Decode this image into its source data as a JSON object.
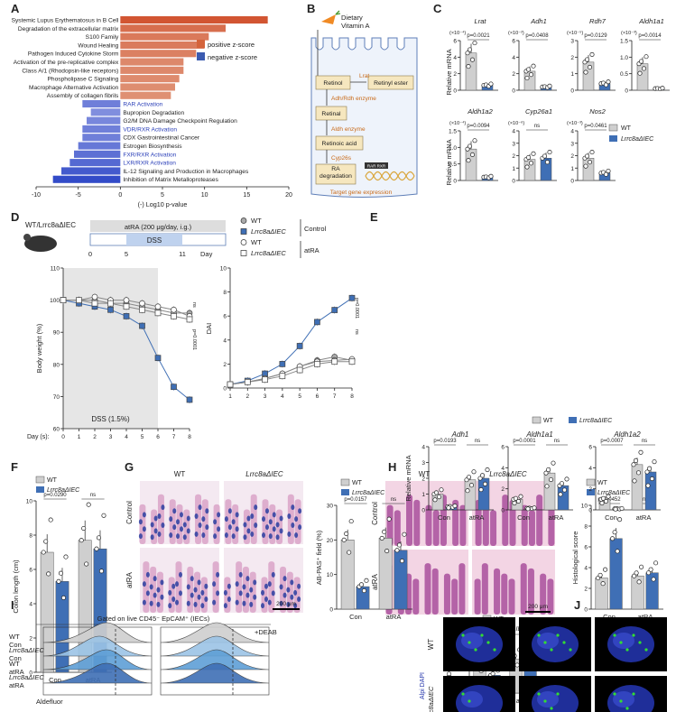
{
  "panel_letters": [
    "A",
    "B",
    "C",
    "D",
    "E",
    "F",
    "G",
    "H",
    "I",
    "J"
  ],
  "chart_data": [
    {
      "panel": "A",
      "type": "bar",
      "orientation": "horizontal",
      "categories": [
        "Systemic Lupus Erythematosus in B Cell",
        "Degradation of the extracellular matrix",
        "S100 Family",
        "Wound Healing",
        "Pathogen Induced Cytokine Storm",
        "Activation of the pre-replicative complex",
        "Class A/1 (Rhodopsin-like receptors)",
        "Phospholipase C Signaling",
        "Macrophage Alternative Activation",
        "Assembly of collagen fibrils",
        "RAR Activation",
        "Bupropion Degradation",
        "G2/M DNA Damage Checkpoint Regulation",
        "VDR/RXR Activation",
        "CDX Gastrointestinal Cancer",
        "Estrogen Biosynthesis",
        "FXR/RXR Activation",
        "LXR/RXR Activation",
        "IL-12 Signaling and Production in Macrophages",
        "Inhibition of Matrix Metalloproteases"
      ],
      "values": [
        17.5,
        12.5,
        10.5,
        10.0,
        9.0,
        7.5,
        7.5,
        7.0,
        6.5,
        6.0,
        -4.5,
        -3.5,
        -4.0,
        -4.5,
        -4.5,
        -5.0,
        -5.5,
        -6.0,
        -7.0,
        -8.0
      ],
      "highlight_blue_labels": [
        "RAR Activation",
        "VDR/RXR Activation",
        "FXR/RXR Activation",
        "LXR/RXR Activation"
      ],
      "xlabel": "(-) Log10 p-value",
      "xticks": [
        "-10",
        "-5",
        "0",
        "5",
        "10",
        "15",
        "20"
      ],
      "xlim": [
        -10,
        20
      ],
      "legend": [
        "positive z-score",
        "negative z-score"
      ],
      "legend_colors": [
        "#d4633b",
        "#3b5bb0"
      ]
    },
    {
      "panel": "C",
      "type": "bar",
      "ylabel": "Relative mRNA",
      "groups": [
        "WT",
        "Lrrc8aΔIEC"
      ],
      "subplots": [
        {
          "gene": "Lrat",
          "scale": "(×10⁻⁴)",
          "ymax": 6,
          "yticks": [
            "0",
            "2",
            "4",
            "6"
          ],
          "values": [
            4.5,
            0.6
          ],
          "p": "p=0.0021"
        },
        {
          "gene": "Adh1",
          "scale": "(×10⁻²)",
          "ymax": 6,
          "yticks": [
            "0",
            "2",
            "4",
            "6"
          ],
          "values": [
            2.3,
            0.4
          ],
          "p": "p=0.0408"
        },
        {
          "gene": "Rdh7",
          "scale": "(×10⁻⁵)",
          "ymax": 3,
          "yticks": [
            "0",
            "1",
            "2",
            "3"
          ],
          "values": [
            1.7,
            0.4
          ],
          "p": "p=0.0129"
        },
        {
          "gene": "Aldh1a1",
          "scale": "(×10⁻³)",
          "ymax": 1.5,
          "yticks": [
            "0",
            "0.5",
            "1.0",
            "1.5"
          ],
          "values": [
            0.8,
            0.05
          ],
          "p": "p=0.0014"
        },
        {
          "gene": "Aldh1a2",
          "scale": "(×10⁻⁴)",
          "ymax": 1.5,
          "yticks": [
            "0",
            "0.5",
            "1.0",
            "1.5"
          ],
          "values": [
            0.95,
            0.1
          ],
          "p": "p=0.0094"
        },
        {
          "gene": "Cyp26a1",
          "scale": "(×10⁻⁶)",
          "ymax": 4,
          "yticks": [
            "0",
            "1",
            "2",
            "3",
            "4"
          ],
          "values": [
            1.7,
            1.8
          ],
          "p": "ns"
        },
        {
          "gene": "Nos2",
          "scale": "(×10⁻³)",
          "ymax": 4,
          "yticks": [
            "0",
            "1",
            "2",
            "3",
            "4"
          ],
          "values": [
            1.8,
            0.6
          ],
          "p": "p=0.0461"
        }
      ]
    },
    {
      "panel": "D-left",
      "type": "line",
      "ylabel": "Body weight (%)",
      "xlabel": "Day (s):",
      "x": [
        0,
        1,
        2,
        3,
        4,
        5,
        6,
        7,
        8
      ],
      "ylim": [
        60,
        110
      ],
      "yticks": [
        "60",
        "70",
        "80",
        "90",
        "100",
        "110"
      ],
      "shade_label": "DSS (1.5%)",
      "series": [
        {
          "name": "WT Control",
          "values": [
            100,
            100,
            100,
            99,
            99,
            98,
            97,
            96,
            96
          ]
        },
        {
          "name": "Lrrc8aΔIEC Control",
          "values": [
            100,
            99,
            98,
            97,
            95,
            92,
            82,
            73,
            69
          ]
        },
        {
          "name": "WT atRA",
          "values": [
            100,
            100,
            101,
            100,
            100,
            99,
            98,
            97,
            95
          ]
        },
        {
          "name": "Lrrc8aΔIEC atRA",
          "values": [
            100,
            100,
            99,
            99,
            98,
            97,
            96,
            95,
            94
          ]
        }
      ],
      "stats": [
        "ns",
        "p=0.0001",
        "ns"
      ]
    },
    {
      "panel": "D-right",
      "type": "line",
      "ylabel": "DAI",
      "x": [
        1,
        2,
        3,
        4,
        5,
        6,
        7,
        8
      ],
      "ylim": [
        0,
        10
      ],
      "yticks": [
        "0",
        "2",
        "4",
        "6",
        "8",
        "10"
      ],
      "series": [
        {
          "name": "WT Control",
          "values": [
            0.3,
            0.5,
            0.8,
            1.2,
            1.8,
            2.3,
            2.6,
            2.3
          ]
        },
        {
          "name": "Lrrc8aΔIEC Control",
          "values": [
            0.3,
            0.6,
            1.2,
            2.0,
            3.5,
            5.5,
            6.5,
            7.5
          ]
        },
        {
          "name": "WT atRA",
          "values": [
            0.3,
            0.5,
            0.8,
            1.2,
            1.8,
            2.2,
            2.3,
            2.4
          ]
        },
        {
          "name": "Lrrc8aΔIEC atRA",
          "values": [
            0.3,
            0.5,
            0.7,
            1.0,
            1.5,
            2.0,
            2.2,
            2.2
          ]
        }
      ],
      "stats": [
        "p=0.0001",
        "ns"
      ]
    },
    {
      "panel": "E",
      "type": "bar",
      "ylabel": "Colon length (cm)",
      "categories": [
        "Con",
        "atRA"
      ],
      "series": [
        {
          "name": "WT",
          "values": [
            7.0,
            7.7
          ]
        },
        {
          "name": "Lrrc8aΔIEC",
          "values": [
            5.3,
            7.2
          ]
        }
      ],
      "ylim": [
        0,
        10
      ],
      "yticks": [
        "0",
        "2",
        "4",
        "6",
        "8",
        "10"
      ],
      "stats": [
        "p=0.0290",
        "ns"
      ]
    },
    {
      "panel": "F",
      "type": "bar",
      "ylabel": "Histological score",
      "categories": [
        "Con",
        "atRA"
      ],
      "series": [
        {
          "name": "WT",
          "values": [
            3.0,
            3.2
          ]
        },
        {
          "name": "Lrrc8aΔIEC",
          "values": [
            6.8,
            3.5
          ]
        }
      ],
      "ylim": [
        0,
        10
      ],
      "yticks": [
        "0",
        "2",
        "4",
        "6",
        "8",
        "10"
      ],
      "stats": [
        "p=0.0452",
        "ns"
      ]
    },
    {
      "panel": "G",
      "type": "bar",
      "ylabel": "AB-PAS⁺ field (%)",
      "categories": [
        "Con",
        "atRA"
      ],
      "series": [
        {
          "name": "WT",
          "values": [
            20,
            20.5
          ]
        },
        {
          "name": "Lrrc8aΔIEC",
          "values": [
            6.5,
            17
          ]
        }
      ],
      "ylim": [
        0,
        30
      ],
      "yticks": [
        "0",
        "10",
        "20",
        "30"
      ],
      "stats": [
        "p=0.0157",
        "ns"
      ]
    },
    {
      "panel": "H",
      "type": "bar",
      "ylabel": "Relative mRNA",
      "subplots": [
        {
          "gene": "Adh1",
          "ymax": 4,
          "yticks": [
            "0",
            "1",
            "2",
            "3",
            "4"
          ],
          "wt": [
            1.0,
            1.9
          ],
          "ko": [
            0.2,
            2.0
          ],
          "stats": [
            "p=0.0193",
            "ns"
          ]
        },
        {
          "gene": "Aldh1a1",
          "ymax": 6,
          "yticks": [
            "0",
            "2",
            "4",
            "6"
          ],
          "wt": [
            1.0,
            3.5
          ],
          "ko": [
            0.15,
            2.3
          ],
          "stats": [
            "p=0.0001",
            "ns"
          ]
        },
        {
          "gene": "Aldh1a2",
          "ymax": 6,
          "yticks": [
            "0",
            "2",
            "4",
            "6"
          ],
          "wt": [
            1.0,
            4.3
          ],
          "ko": [
            0.1,
            3.6
          ],
          "stats": [
            "p=0.0007",
            "ns"
          ]
        }
      ],
      "categories": [
        "Con",
        "atRA"
      ]
    },
    {
      "panel": "I",
      "type": "bar",
      "ylabel": "ALDH activity",
      "categories": [
        "Con",
        "atRA"
      ],
      "series": [
        {
          "name": "WT",
          "values": [
            19,
            24
          ]
        },
        {
          "name": "Lrrc8aΔIEC",
          "values": [
            12.5,
            25
          ]
        }
      ],
      "ylim": [
        0,
        40
      ],
      "yticks": [
        "0",
        "10",
        "20",
        "30",
        "40"
      ],
      "stats": [
        "p=0.0103",
        "ns"
      ]
    }
  ],
  "panelB": {
    "diet_label": "Dietary\nVitamin A",
    "boxes": [
      "Retinol",
      "Retinyl ester",
      "Retinal",
      "Retinoic acid",
      "RA\ndegradation"
    ],
    "enzymes": [
      "Lrat",
      "Adh/Rdh enzyme",
      "Aldh enzyme",
      "Cyp26s"
    ],
    "rare_label": "RAR RXR",
    "target": "Target gene expression"
  },
  "panelD": {
    "mouse_label": "WT/Lrrc8aΔIEC",
    "atra_text": "atRA (200 μg/day, i.g.)",
    "dss_text": "DSS",
    "timeline": [
      "0",
      "5",
      "11"
    ],
    "day_word": "Day",
    "legend": [
      "WT",
      "Lrrc8aΔIEC",
      "WT",
      "Lrrc8aΔIEC"
    ],
    "group_labels": [
      "Control",
      "atRA"
    ]
  },
  "panelF": {
    "col_headers": [
      "WT",
      "Lrrc8aΔIEC"
    ],
    "row_labels": [
      "Control",
      "atRA"
    ],
    "scale": "200 μm"
  },
  "panelG": {
    "col_headers": [
      "WT",
      "Lrrc8aΔIEC"
    ],
    "row_labels": [
      "Control",
      "atRA"
    ],
    "scale": "200 μm"
  },
  "panelI": {
    "header": "Gated on live CD45⁻ EpCAM⁺ (IECs)",
    "deab": "+DEAB",
    "row_labels": [
      "WT\nCon",
      "Lrrc8aΔIEC\nCon",
      "WT\natRA",
      "Lrrc8aΔIEC\natRA"
    ],
    "xlabel": "Aldefluor"
  },
  "panelJ": {
    "row_labels": [
      "WT",
      "Lrrc8aΔIEC"
    ],
    "stain": "Alpi DAPI",
    "scale": "100 μm",
    "atra_label": "atRA:",
    "conditions": [
      "-",
      "1 μM",
      "5 μM"
    ]
  },
  "legend_groups": [
    "WT",
    "Lrrc8aΔIEC"
  ],
  "colors": {
    "wt": "#cfcfcf",
    "ko": "#3f6fb5",
    "orange": "#d4633b",
    "blue": "#3b5bb0",
    "stain_blue": "#2233aa",
    "stain_green": "#33dd33"
  }
}
